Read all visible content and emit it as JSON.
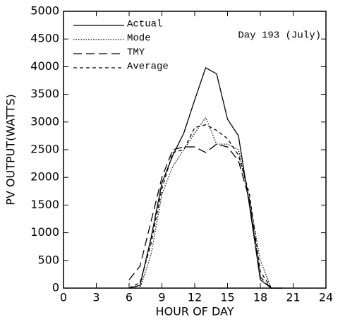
{
  "chart_data": {
    "type": "line",
    "annotation": "Day 193 (July)",
    "x_label": "HOUR OF DAY",
    "y_label": "PV OUTPUT(WATTS)",
    "x": [
      6,
      7,
      8,
      9,
      10,
      11,
      12,
      13,
      14,
      15,
      16,
      17,
      18,
      19,
      20
    ],
    "series": [
      {
        "name": "Actual",
        "color": "#000000",
        "dash": "none",
        "values": [
          0,
          50,
          900,
          1900,
          2400,
          2800,
          3400,
          3980,
          3870,
          3050,
          2750,
          1500,
          150,
          0,
          0
        ]
      },
      {
        "name": "Mode",
        "color": "#000000",
        "dash": "1.5,2",
        "values": [
          0,
          0,
          600,
          1700,
          2200,
          2500,
          2800,
          3080,
          2600,
          2600,
          2500,
          1600,
          500,
          0,
          0
        ]
      },
      {
        "name": "TMY",
        "color": "#000000",
        "dash": "12,6",
        "values": [
          150,
          400,
          1200,
          2000,
          2500,
          2550,
          2550,
          2450,
          2600,
          2550,
          2300,
          1600,
          200,
          0,
          0
        ]
      },
      {
        "name": "Average",
        "color": "#000000",
        "dash": "5,4",
        "values": [
          0,
          100,
          800,
          1800,
          2450,
          2500,
          2900,
          2950,
          2850,
          2700,
          2400,
          1700,
          300,
          0,
          0
        ]
      }
    ],
    "xlim": [
      0,
      24
    ],
    "xticks": [
      0,
      3,
      6,
      9,
      12,
      15,
      18,
      21,
      24
    ],
    "ylim": [
      0,
      5000
    ],
    "yticks": [
      0,
      500,
      1000,
      1500,
      2000,
      2500,
      3000,
      3500,
      4000,
      4500,
      5000
    ],
    "legend": "upper-left",
    "grid": false
  }
}
